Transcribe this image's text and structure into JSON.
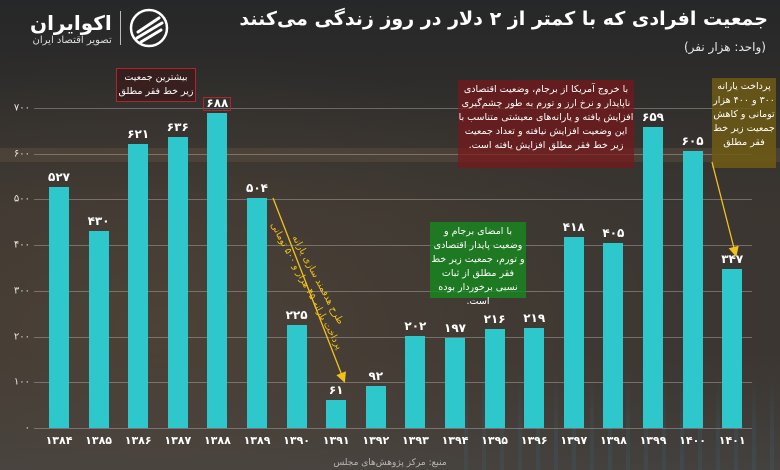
{
  "header": {
    "title": "جمعیت افرادی که با کمتر از ۲ دلار در روز زندگی می‌کنند",
    "unit": "(واحد: هزار نفر)",
    "logo_name": "اکوایران",
    "logo_sub": "تصویر اقتصاد ایران"
  },
  "colors": {
    "bar": "#2ec8cc",
    "annotation_red": "#b0252a",
    "annotation_green": "#1f8c22",
    "annotation_olive": "#6e5a14",
    "arrow": "#f3c21a"
  },
  "annotations": {
    "max_note": "بیشترین جمعیت زیر خط فقر مطلق",
    "jcpoa_exit_note": "با خروج آمریکا از برجام، وضعیت اقتصادی ناپایدار و نرخ ارز و تورم به طور چشم‌گیری افزایش یافته و یارانه‌های معیشتی متناسب با این وضعیت افزایش نیافته و تعداد جمعیت زیر خط فقر مطلق افزایش یافته است.",
    "jcpoa_sign_note": "با امضای برجام و وضعیت پایدار اقتصادی و تورم، جمعیت زیر خط فقر مطلق از ثبات نسبی برخوردار بوده است.",
    "subsidy_1401_note": "پرداخت یارانه ۳۰۰ و ۴۰۰ هزار تومانی و کاهش جمعیت زیر خط فقر مطلق",
    "subsidy_1389_note_line1": "طرح هدفمند سازی یارانه",
    "subsidy_1389_note_line2": "پرداخت یارانه ۴۵ هزار و ۵۰۰ تومانی"
  },
  "footer": {
    "text": "منبع: مرکز پژوهش‌های مجلس"
  },
  "chart_data": {
    "type": "bar",
    "title": "جمعیت افرادی که با کمتر از ۲ دلار در روز زندگی می‌کنند",
    "subtitle": "(واحد: هزار نفر)",
    "xlabel": "",
    "ylabel": "هزار نفر",
    "ylim": [
      0,
      700
    ],
    "grid": true,
    "yticks": [
      "۰",
      "۱۰۰",
      "۲۰۰",
      "۳۰۰",
      "۴۰۰",
      "۵۰۰",
      "۶۰۰",
      "۷۰۰"
    ],
    "ytick_values": [
      0,
      100,
      200,
      300,
      400,
      500,
      600,
      700
    ],
    "categories": [
      "۱۳۸۴",
      "۱۳۸۵",
      "۱۳۸۶",
      "۱۳۸۷",
      "۱۳۸۸",
      "۱۳۸۹",
      "۱۳۹۰",
      "۱۳۹۱",
      "۱۳۹۲",
      "۱۳۹۳",
      "۱۳۹۴",
      "۱۳۹۵",
      "۱۳۹۶",
      "۱۳۹۷",
      "۱۳۹۸",
      "۱۳۹۹",
      "۱۴۰۰",
      "۱۴۰۱"
    ],
    "categories_latin": [
      "1384",
      "1385",
      "1386",
      "1387",
      "1388",
      "1389",
      "1390",
      "1391",
      "1392",
      "1393",
      "1394",
      "1395",
      "1396",
      "1397",
      "1398",
      "1399",
      "1400",
      "1401"
    ],
    "values": [
      527,
      430,
      621,
      636,
      688,
      504,
      225,
      61,
      92,
      202,
      197,
      216,
      219,
      418,
      405,
      659,
      605,
      347
    ],
    "value_labels": [
      "۵۲۷",
      "۴۳۰",
      "۶۲۱",
      "۶۳۶",
      "۶۸۸",
      "۵۰۴",
      "۲۲۵",
      "۶۱",
      "۹۲",
      "۲۰۲",
      "۱۹۷",
      "۲۱۶",
      "۲۱۹",
      "۴۱۸",
      "۴۰۵",
      "۶۵۹",
      "۶۰۵",
      "۳۴۷"
    ],
    "legend": []
  }
}
